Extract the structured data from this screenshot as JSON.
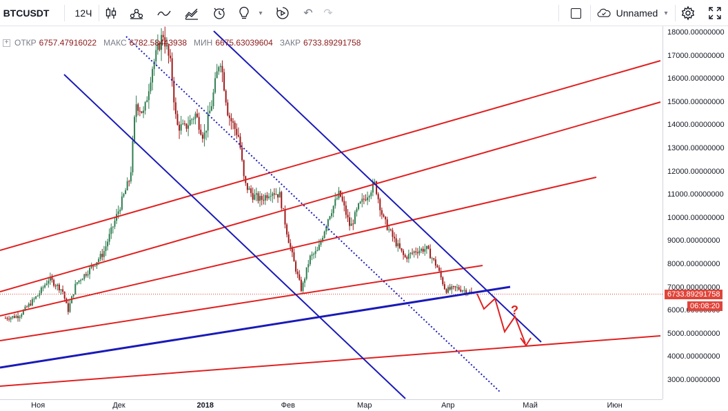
{
  "toolbar": {
    "symbol": "BTCUSDT",
    "interval": "12Ч",
    "layout_name": "Unnamed",
    "icons": [
      "candles-icon",
      "indicators-icon",
      "compare-icon",
      "templates-icon",
      "alert-icon",
      "ideas-icon",
      "dropdown-icon",
      "replay-icon",
      "undo-icon",
      "redo-icon",
      "fullscreen-checkbox-icon",
      "cloud-icon",
      "dropdown-icon",
      "settings-icon",
      "fullscreen-icon"
    ]
  },
  "legend": {
    "open_label": "ОТКР",
    "open_value": "6757.47916022",
    "high_label": "МАКС",
    "high_value": "6782.58443938",
    "low_label": "МИН",
    "low_value": "6675.63039604",
    "close_label": "ЗАКР",
    "close_value": "6733.89291758"
  },
  "last_price": {
    "value": "6733.89291758",
    "countdown": "06:08:20",
    "color": "#e0443a"
  },
  "chart_data": {
    "type": "candlestick",
    "symbol": "BTCUSDT",
    "price_ticks": [
      "18000.00000000",
      "17000.00000000",
      "16000.00000000",
      "15000.00000000",
      "14000.00000000",
      "13000.00000000",
      "12000.00000000",
      "11000.00000000",
      "10000.00000000",
      "9000.00000000",
      "8000.00000000",
      "7000.00000000",
      "6000.00000000",
      "5000.00000000",
      "4000.00000000",
      "3000.00000000"
    ],
    "time_ticks": [
      "Ноя",
      "Дек",
      "2018",
      "Фев",
      "Мар",
      "Апр",
      "Май",
      "Июн"
    ],
    "ylim": [
      2500,
      18200
    ],
    "close_path": [
      [
        "2017-10-20",
        5700
      ],
      [
        "2017-10-25",
        5800
      ],
      [
        "2017-11-01",
        6700
      ],
      [
        "2017-11-05",
        7400
      ],
      [
        "2017-11-10",
        6900
      ],
      [
        "2017-11-12",
        6000
      ],
      [
        "2017-11-15",
        7200
      ],
      [
        "2017-11-20",
        7800
      ],
      [
        "2017-11-25",
        8500
      ],
      [
        "2017-11-29",
        9800
      ],
      [
        "2017-12-02",
        10800
      ],
      [
        "2017-12-05",
        11800
      ],
      [
        "2017-12-07",
        15000
      ],
      [
        "2017-12-10",
        14500
      ],
      [
        "2017-12-13",
        16500
      ],
      [
        "2017-12-17",
        18000
      ],
      [
        "2017-12-20",
        16500
      ],
      [
        "2017-12-22",
        14000
      ],
      [
        "2017-12-25",
        13900
      ],
      [
        "2017-12-29",
        14500
      ],
      [
        "2018-01-01",
        13500
      ],
      [
        "2018-01-04",
        15000
      ],
      [
        "2018-01-07",
        17000
      ],
      [
        "2018-01-10",
        14500
      ],
      [
        "2018-01-14",
        13500
      ],
      [
        "2018-01-16",
        11500
      ],
      [
        "2018-01-19",
        11000
      ],
      [
        "2018-01-22",
        10800
      ],
      [
        "2018-01-26",
        11200
      ],
      [
        "2018-01-29",
        11000
      ],
      [
        "2018-02-01",
        9200
      ],
      [
        "2018-02-03",
        8200
      ],
      [
        "2018-02-06",
        6900
      ],
      [
        "2018-02-09",
        8300
      ],
      [
        "2018-02-12",
        8600
      ],
      [
        "2018-02-16",
        10100
      ],
      [
        "2018-02-20",
        11100
      ],
      [
        "2018-02-24",
        9600
      ],
      [
        "2018-02-27",
        10500
      ],
      [
        "2018-03-02",
        11000
      ],
      [
        "2018-03-05",
        11500
      ],
      [
        "2018-03-08",
        10000
      ],
      [
        "2018-03-12",
        9100
      ],
      [
        "2018-03-16",
        8300
      ],
      [
        "2018-03-20",
        8600
      ],
      [
        "2018-03-24",
        8700
      ],
      [
        "2018-03-28",
        7900
      ],
      [
        "2018-03-31",
        6900
      ],
      [
        "2018-04-04",
        7000
      ],
      [
        "2018-04-07",
        6900
      ],
      [
        "2018-04-10",
        6750
      ]
    ],
    "drawings": [
      {
        "name": "descending-channel-upper-line",
        "color": "#1a1ab8",
        "style": "solid"
      },
      {
        "name": "descending-channel-lower-line",
        "color": "#1a1ab8",
        "style": "solid"
      },
      {
        "name": "descending-dotted-trend-line",
        "color": "#1a1ab8",
        "style": "dotted"
      },
      {
        "name": "ascending-support-trend-line",
        "color": "#1a1ab8",
        "style": "solid-thick"
      },
      {
        "name": "red-parallel-channel-lines",
        "color": "#e02020",
        "style": "solid"
      },
      {
        "name": "red-projection-zigzag-arrow",
        "color": "#e02020",
        "style": "solid"
      }
    ],
    "annotation": "?"
  }
}
